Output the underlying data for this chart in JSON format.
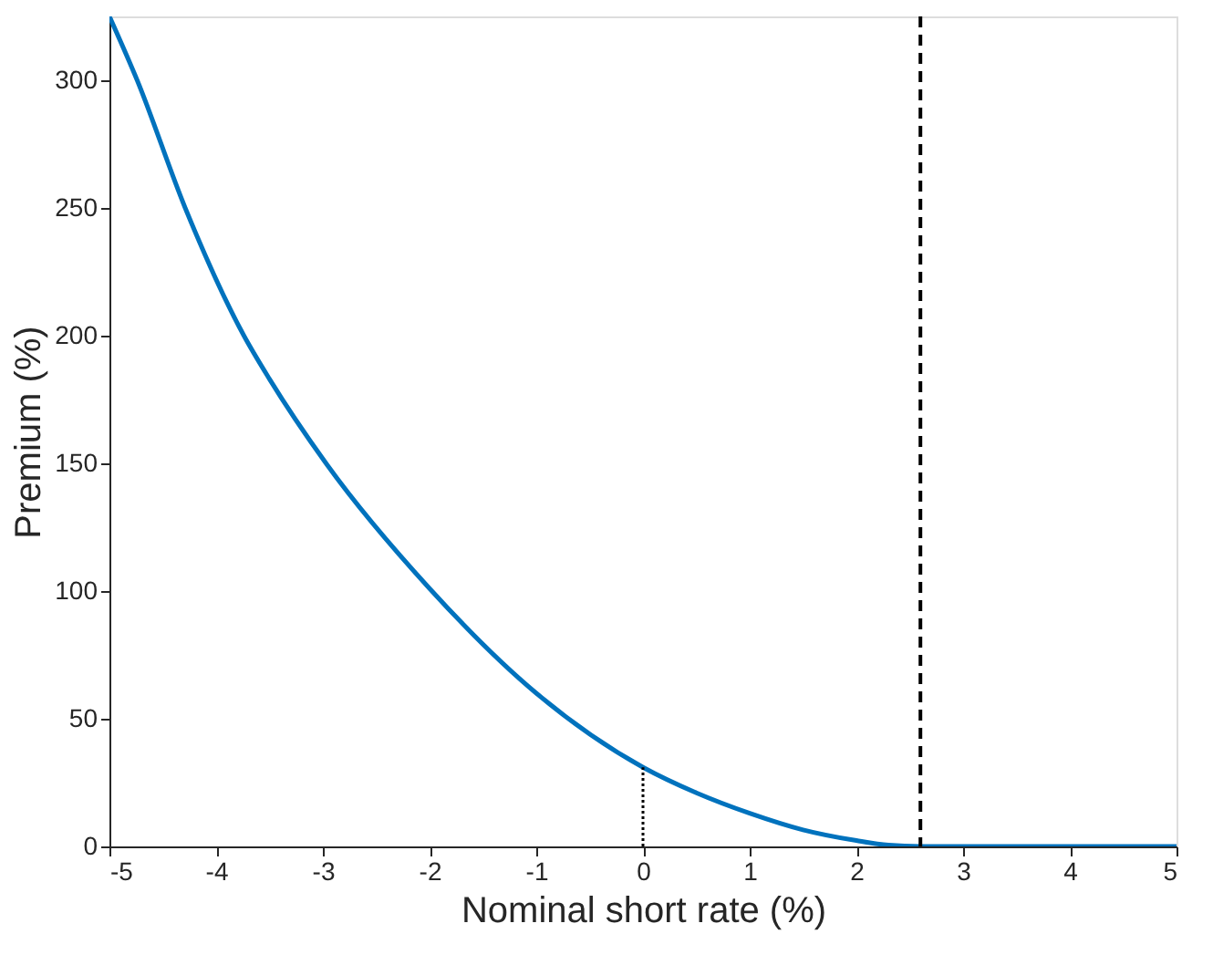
{
  "chart_data": {
    "type": "line",
    "xlabel": "Nominal short rate (%)",
    "ylabel": "Premium (%)",
    "xlim": [
      -5,
      5
    ],
    "ylim": [
      0,
      325
    ],
    "xticks": [
      -5,
      -4,
      -3,
      -2,
      -1,
      0,
      1,
      2,
      3,
      4,
      5
    ],
    "yticks": [
      0,
      50,
      100,
      150,
      200,
      250,
      300
    ],
    "grid": false,
    "marker": "none",
    "series": [
      {
        "color": "#0072bd",
        "line_style": "solid",
        "x": [
          -5,
          -4.74,
          -4.29,
          -3.74,
          -3.5,
          -2.97,
          -2,
          -1,
          0,
          0.5,
          1,
          1.5,
          2,
          2.3,
          2.6,
          3,
          4,
          5
        ],
        "values": [
          325,
          300,
          250,
          200,
          183,
          150,
          101,
          60,
          31,
          21,
          13,
          6.5,
          2.3,
          0.5,
          0,
          0,
          0,
          0
        ]
      },
      {
        "color": "#000000",
        "line_style": "dotted",
        "x": [
          0,
          0
        ],
        "values": [
          0,
          31
        ]
      }
    ],
    "ref_lines": [
      {
        "axis": "x",
        "value": 2.6,
        "color": "#000000",
        "line_style": "dashed"
      }
    ]
  }
}
